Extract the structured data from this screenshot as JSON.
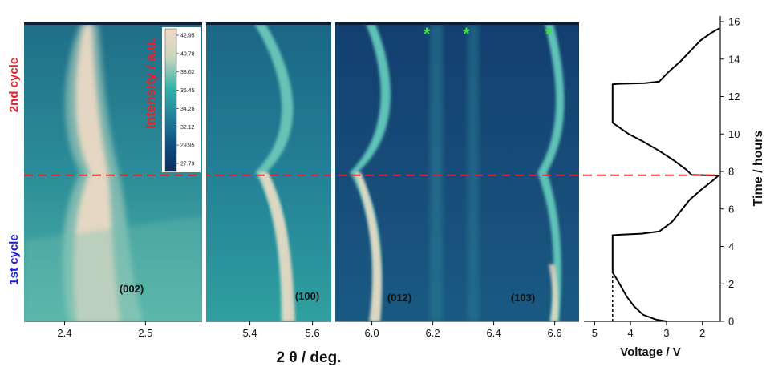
{
  "chart_data": [
    {
      "type": "heatmap",
      "xlabel": "2 θ / deg.",
      "panels": [
        {
          "xlim": [
            2.35,
            2.57
          ],
          "xticks": [
            "2.4",
            "2.5"
          ],
          "tick_values": [
            2.4,
            2.5
          ],
          "peak_label": "(002)"
        },
        {
          "xlim": [
            5.26,
            5.66
          ],
          "xticks": [
            "5.4",
            "5.6"
          ],
          "tick_values": [
            5.4,
            5.6
          ],
          "peak_label": "(100)"
        },
        {
          "xlim": [
            5.88,
            6.68
          ],
          "xticks": [
            "6.0",
            "6.2",
            "6.4",
            "6.6"
          ],
          "tick_values": [
            6.0,
            6.2,
            6.4,
            6.6
          ],
          "peak_labels": [
            "(012)",
            "(103)"
          ],
          "marker_positions": [
            6.18,
            6.31,
            6.58
          ],
          "marker_symbol": "*"
        }
      ],
      "colorbar": {
        "label": "Intensity / a.u.",
        "ticks": [
          "42.95",
          "40.78",
          "38.62",
          "36.45",
          "34.28",
          "32.12",
          "29.95",
          "27.79"
        ],
        "colors": [
          "#f1dbc5",
          "#c9d5bd",
          "#2fb3aa",
          "#22809a",
          "#0e4d80",
          "#0b2d5e"
        ]
      },
      "cycle_labels": [
        {
          "text": "2nd cycle",
          "color": "#e5212b"
        },
        {
          "text": "1st cycle",
          "color": "#2020d8"
        }
      ],
      "divider_time_h": 7.8
    },
    {
      "type": "line",
      "xlabel": "Voltage / V",
      "ylabel": "Time / hours",
      "xlim": [
        5.3,
        1.5
      ],
      "ylim": [
        0,
        16.3
      ],
      "xticks": [
        5,
        4,
        3,
        2
      ],
      "yticks": [
        0,
        2,
        4,
        6,
        8,
        10,
        12,
        14,
        16
      ],
      "series": [
        {
          "points": [
            [
              3.0,
              0
            ],
            [
              3.3,
              0.1
            ],
            [
              3.65,
              0.35
            ],
            [
              3.9,
              0.8
            ],
            [
              4.1,
              1.3
            ],
            [
              4.25,
              1.8
            ],
            [
              4.4,
              2.3
            ],
            [
              4.5,
              2.6
            ],
            [
              4.5,
              4.6
            ],
            [
              4.35,
              4.62
            ],
            [
              3.7,
              4.68
            ],
            [
              3.2,
              4.8
            ],
            [
              2.85,
              5.3
            ],
            [
              2.6,
              5.9
            ],
            [
              2.35,
              6.5
            ],
            [
              2.05,
              7.0
            ],
            [
              1.75,
              7.45
            ],
            [
              1.55,
              7.78
            ],
            [
              2.3,
              7.82
            ],
            [
              2.45,
              8.1
            ],
            [
              2.8,
              8.6
            ],
            [
              3.2,
              9.1
            ],
            [
              3.65,
              9.6
            ],
            [
              4.05,
              10.0
            ],
            [
              4.35,
              10.4
            ],
            [
              4.5,
              10.6
            ],
            [
              4.5,
              12.65
            ],
            [
              4.35,
              12.68
            ],
            [
              3.6,
              12.72
            ],
            [
              3.2,
              12.8
            ],
            [
              2.95,
              13.3
            ],
            [
              2.6,
              13.9
            ],
            [
              2.3,
              14.5
            ],
            [
              2.05,
              15.0
            ],
            [
              1.75,
              15.4
            ],
            [
              1.52,
              15.65
            ]
          ]
        }
      ],
      "guide_dashed_vertical": {
        "x": 4.5,
        "y_range": [
          0,
          2.6
        ]
      }
    }
  ]
}
